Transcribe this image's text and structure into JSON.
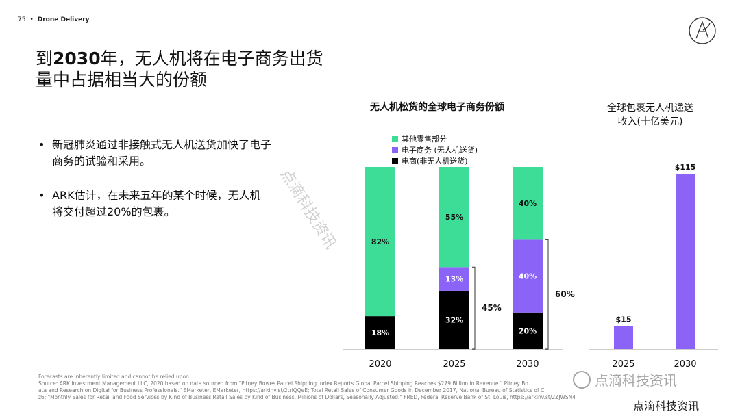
{
  "header": {
    "page_number": "75",
    "separator": "•",
    "section": "Drone Delivery"
  },
  "title": {
    "prefix": "到",
    "year": "2030",
    "rest_line1": "年，无人机将在电子商务出货",
    "line2": "量中占据相当大的份额"
  },
  "bullets": [
    "新冠肺炎通过非接触式无人机送货加快了电子商务的试验和采用。",
    "ARK估计，在未来五年的某个时候，无人机将交付超过20%的包裹。"
  ],
  "colors": {
    "other_retail": "#3ddc97",
    "ecom_drone": "#8b63f7",
    "ecom_nondrone": "#000000",
    "revenue": "#8b63f7"
  },
  "chart_data": [
    {
      "type": "bar",
      "title": "无人机松货的全球电子商务份额",
      "stacked": true,
      "categories": [
        "2020",
        "2025",
        "2030"
      ],
      "legend": [
        "其他零售部分",
        "电子商务 (无人机送货)",
        "电商(非无人机送货)"
      ],
      "series": [
        {
          "name": "电商(非无人机送货)",
          "values": [
            18,
            32,
            20
          ],
          "labels": [
            "18%",
            "32%",
            "20%"
          ]
        },
        {
          "name": "电子商务 (无人机送货)",
          "values": [
            0,
            13,
            40
          ],
          "labels": [
            "",
            "13%",
            "40%"
          ]
        },
        {
          "name": "其他零售部分",
          "values": [
            82,
            55,
            40
          ],
          "labels": [
            "82%",
            "55%",
            "40%"
          ]
        }
      ],
      "brackets": [
        {
          "category": "2025",
          "label": "45%"
        },
        {
          "category": "2030",
          "label": "60%"
        }
      ],
      "ylim": [
        0,
        100
      ]
    },
    {
      "type": "bar",
      "title": "全球包裹无人机递送收入(十亿美元)",
      "title_lines": [
        "全球包裹无人机递送",
        "收入(十亿美元)"
      ],
      "categories": [
        "2025",
        "2030"
      ],
      "values": [
        15,
        115
      ],
      "labels": [
        "$15",
        "$115"
      ],
      "ylim": [
        0,
        115
      ]
    }
  ],
  "footer": [
    "Forecasts are inherently limited and cannot be relied upon.",
    "Source: ARK Investment Management LLC, 2020 based on data sourced from \"Pitney Bowes Parcel Shipping Index Reports Global Parcel Shipping Reaches $279 Billion in Revenue.\" Pitney Bo",
    "ata and Research on Digital for Business Professionals.\" EMarketer, EMarketer, https://arkinv.st/2triQQeE; Total Retail Sales of Consumer Goods in December 2017, National Bureau of Statistics of C",
    "z6; \"Monthly Sales for Retail and Food Services by Kind of Business Retail Sales by Kind of Business, Millions of Dollars, Seasonally Adjusted.\" FRED, Federal Reserve Bank of St. Louis, https://arkinv.st/2ZJWSN4"
  ],
  "watermarks": {
    "diagonal": "点滴科技资讯",
    "badge": "点滴科技资讯",
    "bottom": "点滴科技资讯"
  }
}
